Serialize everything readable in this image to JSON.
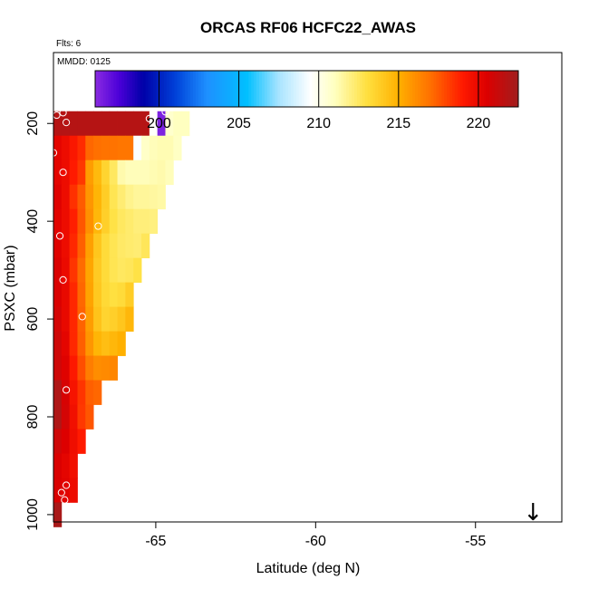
{
  "chart_data": {
    "type": "heatmap",
    "title": "ORCAS RF06 HCFC22_AWAS",
    "subtitle": "Flts: 6",
    "annotation": "MMDD: 0125",
    "xlabel": "Latitude (deg N)",
    "ylabel": "PSXC (mbar)",
    "xlim": [
      -68.2,
      -52.3
    ],
    "ylim": [
      1015,
      55
    ],
    "y_reversed": true,
    "x_ticks": [
      -65,
      -60,
      -55
    ],
    "x_tick_labels": [
      "-65",
      "-60",
      "-55"
    ],
    "y_ticks": [
      200,
      400,
      600,
      800,
      1000
    ],
    "y_tick_labels": [
      "200",
      "400",
      "600",
      "800",
      "1000"
    ],
    "colorbar": {
      "min": 196,
      "max": 222.5,
      "ticks": [
        200,
        205,
        210,
        215,
        220
      ],
      "tick_labels": [
        "200",
        "205",
        "210",
        "215",
        "220"
      ],
      "stops": [
        {
          "v": 196.0,
          "c": "#8a2be2"
        },
        {
          "v": 197.5,
          "c": "#4b00d8"
        },
        {
          "v": 199.0,
          "c": "#0000a8"
        },
        {
          "v": 201.0,
          "c": "#0040d8"
        },
        {
          "v": 203.0,
          "c": "#1e90ff"
        },
        {
          "v": 205.5,
          "c": "#00c0ff"
        },
        {
          "v": 207.5,
          "c": "#a8e4ff"
        },
        {
          "v": 209.5,
          "c": "#ffffff"
        },
        {
          "v": 211.0,
          "c": "#ffffc0"
        },
        {
          "v": 213.0,
          "c": "#ffe040"
        },
        {
          "v": 215.0,
          "c": "#ffb000"
        },
        {
          "v": 217.0,
          "c": "#ff7000"
        },
        {
          "v": 219.0,
          "c": "#ff1a00"
        },
        {
          "v": 220.5,
          "c": "#dd0000"
        },
        {
          "v": 222.5,
          "c": "#a01e1e"
        }
      ]
    },
    "grid": false,
    "cell_width_deg": 0.25,
    "cell_height_mbar": 50,
    "rows": [
      {
        "p": 200,
        "start": -68.2,
        "values": [
          221.8,
          221.8,
          221.8,
          221.8,
          221.8,
          221.8,
          221.8,
          221.8,
          221.8,
          221.8,
          221.8,
          221.8,
          209.6,
          196.3,
          210.7,
          211.0,
          211.0
        ]
      },
      {
        "p": 250,
        "start": -68.2,
        "values": [
          220.2,
          219.8,
          219.2,
          218.6,
          217.2,
          217.0,
          216.9,
          216.9,
          216.8,
          216.8,
          209.4,
          210.8,
          211.1,
          211.2,
          211.2,
          210.9
        ]
      },
      {
        "p": 300,
        "start": -68.2,
        "values": [
          220.2,
          219.8,
          219.0,
          218.3,
          215.6,
          214.6,
          213.5,
          212.5,
          211.3,
          211.1,
          211.1,
          211.1,
          211.2,
          211.3,
          211.1
        ]
      },
      {
        "p": 350,
        "start": -68.2,
        "values": [
          220.4,
          219.8,
          218.5,
          217.5,
          215.8,
          214.8,
          213.8,
          212.7,
          212.2,
          211.8,
          211.6,
          211.6,
          211.5,
          211.4
        ]
      },
      {
        "p": 400,
        "start": -68.2,
        "values": [
          220.3,
          219.8,
          218.9,
          217.6,
          216.0,
          214.7,
          213.7,
          212.9,
          212.5,
          212.3,
          212.1,
          212.1,
          212.0
        ]
      },
      {
        "p": 450,
        "start": -68.2,
        "values": [
          220.4,
          219.8,
          218.7,
          217.4,
          215.5,
          214.1,
          213.2,
          212.7,
          212.4,
          212.3,
          212.2,
          212.6
        ]
      },
      {
        "p": 500,
        "start": -68.2,
        "values": [
          220.6,
          219.9,
          218.4,
          217.1,
          215.3,
          213.9,
          213.2,
          212.7,
          212.5,
          212.6,
          212.9
        ]
      },
      {
        "p": 550,
        "start": -68.2,
        "values": [
          220.6,
          220.0,
          218.7,
          217.2,
          215.4,
          214.0,
          213.3,
          213.0,
          213.2,
          213.8
        ]
      },
      {
        "p": 600,
        "start": -68.2,
        "values": [
          220.8,
          220.0,
          218.7,
          217.3,
          215.6,
          214.2,
          213.5,
          213.7,
          214.1,
          214.7
        ]
      },
      {
        "p": 650,
        "start": -68.2,
        "values": [
          221.0,
          220.2,
          218.7,
          217.4,
          215.8,
          214.8,
          214.4,
          214.7,
          215.0
        ]
      },
      {
        "p": 700,
        "start": -68.2,
        "values": [
          221.0,
          220.4,
          219.1,
          217.8,
          216.6,
          216.1,
          216.2,
          216.3
        ]
      },
      {
        "p": 750,
        "start": -68.2,
        "values": [
          222.0,
          220.7,
          219.4,
          218.4,
          217.4,
          217.2
        ]
      },
      {
        "p": 800,
        "start": -68.2,
        "values": [
          222.0,
          220.8,
          219.6,
          218.3,
          217.6
        ]
      },
      {
        "p": 850,
        "start": -68.2,
        "values": [
          221.0,
          220.5,
          219.7,
          219.0
        ]
      },
      {
        "p": 900,
        "start": -68.2,
        "values": [
          220.6,
          220.2,
          219.6
        ]
      },
      {
        "p": 950,
        "start": -68.2,
        "values": [
          220.6,
          220.3,
          219.8
        ]
      },
      {
        "p": 1000,
        "start": -68.2,
        "values": [
          222.2
        ]
      }
    ],
    "flight_points": [
      {
        "lat": -67.9,
        "p": 178
      },
      {
        "lat": -68.1,
        "p": 183
      },
      {
        "lat": -67.8,
        "p": 198
      },
      {
        "lat": -65.2,
        "p": 190
      },
      {
        "lat": -64.7,
        "p": 176
      },
      {
        "lat": -68.2,
        "p": 260
      },
      {
        "lat": -67.9,
        "p": 300
      },
      {
        "lat": -66.8,
        "p": 410
      },
      {
        "lat": -68.0,
        "p": 430
      },
      {
        "lat": -67.9,
        "p": 520
      },
      {
        "lat": -67.3,
        "p": 595
      },
      {
        "lat": -67.8,
        "p": 745
      },
      {
        "lat": -67.8,
        "p": 940
      },
      {
        "lat": -67.95,
        "p": 955
      },
      {
        "lat": -67.85,
        "p": 970
      }
    ],
    "arrow_marker": {
      "lat": -53.2,
      "p": 1000,
      "symbol": "↓"
    }
  }
}
